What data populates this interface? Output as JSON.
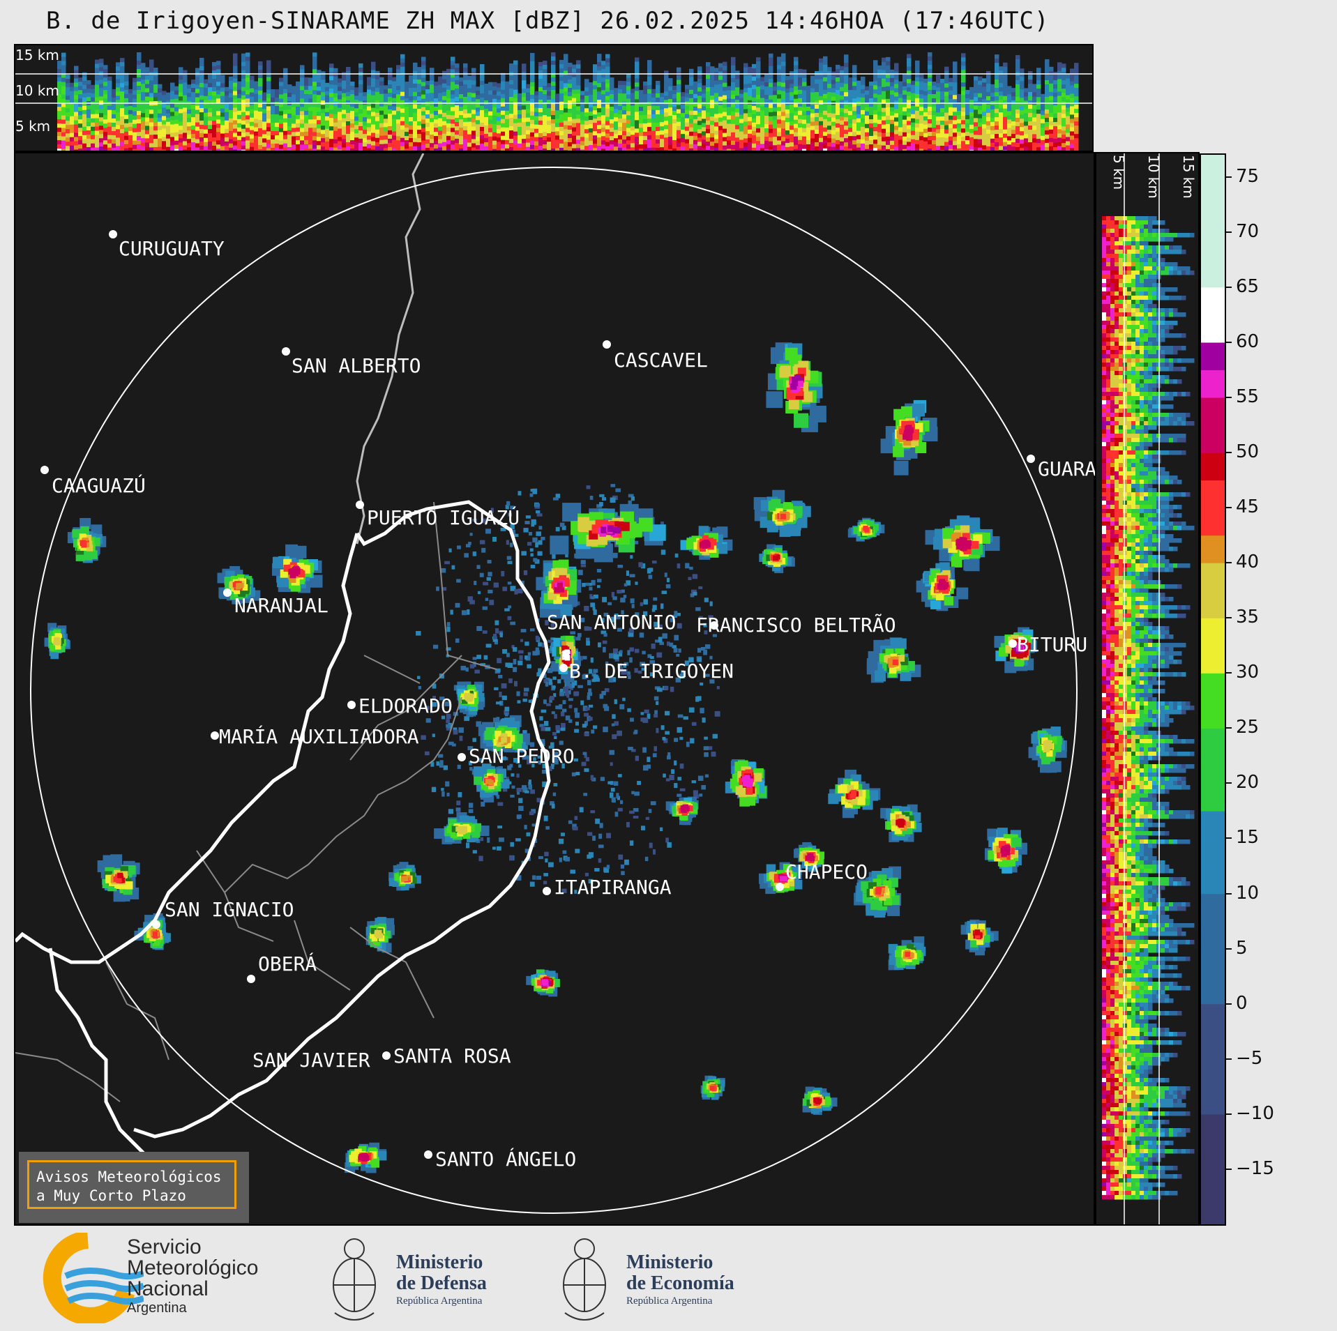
{
  "title": "B. de Irigoyen-SINARAME ZH MAX [dBZ] 26.02.2025 14:46HOA (17:46UTC)",
  "height_labels": {
    "h15": "15 km",
    "h10": "10 km",
    "h5": "5 km"
  },
  "cities": [
    {
      "name": "CURUGUATY"
    },
    {
      "name": "SAN ALBERTO"
    },
    {
      "name": "CASCAVEL"
    },
    {
      "name": "CAAGUAZÚ"
    },
    {
      "name": "GUARA"
    },
    {
      "name": "PUERTO IGUAZÚ"
    },
    {
      "name": "NARANJAL"
    },
    {
      "name": "SAN ANTONIO"
    },
    {
      "name": "FRANCISCO BELTRÃO"
    },
    {
      "name": "BITURU"
    },
    {
      "name": "B. DE IRIGOYEN"
    },
    {
      "name": "ELDORADO"
    },
    {
      "name": "MARÍA AUXILIADORA"
    },
    {
      "name": "SAN PEDRO"
    },
    {
      "name": "ITAPIRANGA"
    },
    {
      "name": "CHAPECO"
    },
    {
      "name": "SAN IGNACIO"
    },
    {
      "name": "OBERÁ"
    },
    {
      "name": "SAN JAVIER"
    },
    {
      "name": "SANTA ROSA"
    },
    {
      "name": "SANTO ÁNGELO"
    }
  ],
  "colorbar": {
    "unit": "dBZ",
    "ticks": [
      "75",
      "70",
      "65",
      "60",
      "55",
      "50",
      "45",
      "40",
      "35",
      "30",
      "25",
      "20",
      "15",
      "10",
      "5",
      "0",
      "−5",
      "−10",
      "−15"
    ],
    "range": [
      -20,
      77
    ]
  },
  "avisos": {
    "line1": "Avisos Meteorológicos",
    "line2": "a Muy Corto Plazo"
  },
  "logos": {
    "smn": {
      "line1": "Servicio",
      "line2": "Meteorológico",
      "line3": "Nacional",
      "line4": "Argentina"
    },
    "defensa": {
      "line1": "Ministerio",
      "line2": "de Defensa",
      "line3": "República Argentina"
    },
    "economia": {
      "line1": "Ministerio",
      "line2": "de Economía",
      "line3": "República Argentina"
    }
  },
  "colors": {
    "background": "#1a1a1a",
    "range_ring": "#ffffff",
    "border_international": "#ffffff",
    "border_provincial": "#8a8a8a",
    "avisos_border": "#f0a000",
    "smn_orange": "#f5a800",
    "smn_blue": "#3aa0dc"
  }
}
